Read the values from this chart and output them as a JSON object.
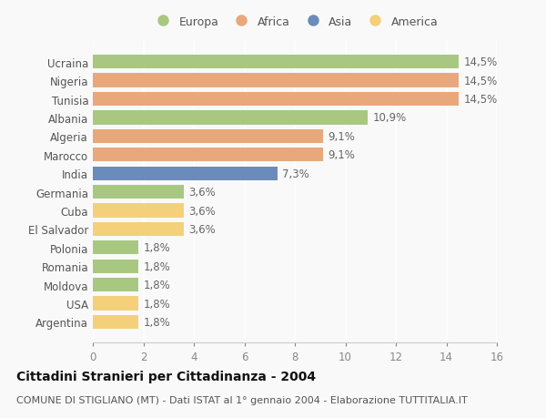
{
  "categories": [
    "Ucraina",
    "Nigeria",
    "Tunisia",
    "Albania",
    "Algeria",
    "Marocco",
    "India",
    "Germania",
    "Cuba",
    "El Salvador",
    "Polonia",
    "Romania",
    "Moldova",
    "USA",
    "Argentina"
  ],
  "values": [
    14.5,
    14.5,
    14.5,
    10.9,
    9.1,
    9.1,
    7.3,
    3.6,
    3.6,
    3.6,
    1.8,
    1.8,
    1.8,
    1.8,
    1.8
  ],
  "labels": [
    "14,5%",
    "14,5%",
    "14,5%",
    "10,9%",
    "9,1%",
    "9,1%",
    "7,3%",
    "3,6%",
    "3,6%",
    "3,6%",
    "1,8%",
    "1,8%",
    "1,8%",
    "1,8%",
    "1,8%"
  ],
  "continents": [
    "Europa",
    "Africa",
    "Africa",
    "Europa",
    "Africa",
    "Africa",
    "Asia",
    "Europa",
    "America",
    "America",
    "Europa",
    "Europa",
    "Europa",
    "America",
    "America"
  ],
  "continent_colors": {
    "Europa": "#a8c882",
    "Africa": "#e8a87c",
    "Asia": "#6b8cba",
    "America": "#f5d07a"
  },
  "legend_order": [
    "Europa",
    "Africa",
    "Asia",
    "America"
  ],
  "title": "Cittadini Stranieri per Cittadinanza - 2004",
  "subtitle": "COMUNE DI STIGLIANO (MT) - Dati ISTAT al 1° gennaio 2004 - Elaborazione TUTTITALIA.IT",
  "xlim": [
    0,
    16
  ],
  "xticks": [
    0,
    2,
    4,
    6,
    8,
    10,
    12,
    14,
    16
  ],
  "background_color": "#f9f9f9",
  "grid_color": "#ffffff",
  "title_fontsize": 10,
  "subtitle_fontsize": 8,
  "tick_fontsize": 8.5,
  "label_fontsize": 8.5
}
